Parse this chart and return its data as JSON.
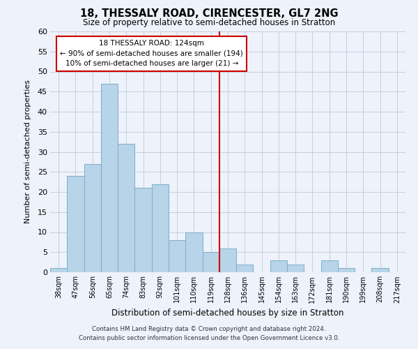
{
  "title": "18, THESSALY ROAD, CIRENCESTER, GL7 2NG",
  "subtitle": "Size of property relative to semi-detached houses in Stratton",
  "xlabel": "Distribution of semi-detached houses by size in Stratton",
  "ylabel": "Number of semi-detached properties",
  "categories": [
    "38sqm",
    "47sqm",
    "56sqm",
    "65sqm",
    "74sqm",
    "83sqm",
    "92sqm",
    "101sqm",
    "110sqm",
    "119sqm",
    "128sqm",
    "136sqm",
    "145sqm",
    "154sqm",
    "163sqm",
    "172sqm",
    "181sqm",
    "190sqm",
    "199sqm",
    "208sqm",
    "217sqm"
  ],
  "values": [
    1,
    24,
    27,
    47,
    32,
    21,
    22,
    8,
    10,
    5,
    6,
    2,
    0,
    3,
    2,
    0,
    3,
    1,
    0,
    1,
    0
  ],
  "bar_color": "#b8d4e8",
  "bar_edge_color": "#7aaecf",
  "vline_color": "#cc0000",
  "annotation_title": "18 THESSALY ROAD: 124sqm",
  "annotation_line1": "← 90% of semi-detached houses are smaller (194)",
  "annotation_line2": "10% of semi-detached houses are larger (21) →",
  "annotation_box_facecolor": "#ffffff",
  "annotation_box_edgecolor": "#cc0000",
  "ylim": [
    0,
    60
  ],
  "yticks": [
    0,
    5,
    10,
    15,
    20,
    25,
    30,
    35,
    40,
    45,
    50,
    55,
    60
  ],
  "footer1": "Contains HM Land Registry data © Crown copyright and database right 2024.",
  "footer2": "Contains public sector information licensed under the Open Government Licence v3.0.",
  "background_color": "#eef2fa",
  "grid_color": "#c5cfe0"
}
